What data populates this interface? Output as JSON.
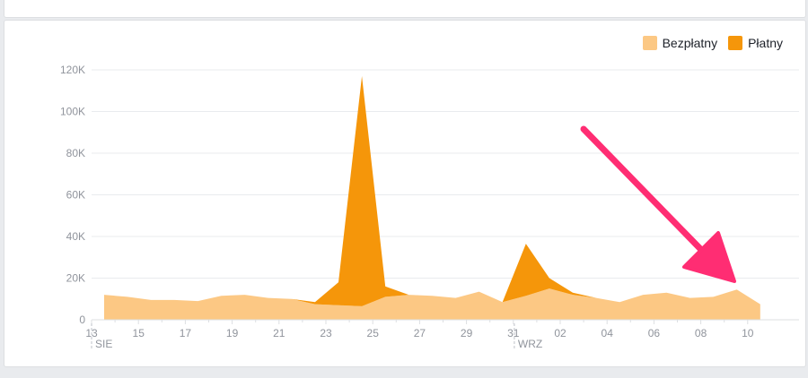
{
  "chart_data": {
    "type": "area",
    "stacked": true,
    "x": [
      "13",
      "14",
      "15",
      "16",
      "17",
      "18",
      "19",
      "20",
      "21",
      "22",
      "23",
      "24",
      "25",
      "26",
      "27",
      "28",
      "29",
      "30",
      "31",
      "01",
      "02",
      "03",
      "04",
      "05",
      "06",
      "07",
      "08",
      "09",
      "10"
    ],
    "x_ticks": [
      "13",
      "15",
      "17",
      "19",
      "21",
      "23",
      "25",
      "27",
      "29",
      "31",
      "02",
      "04",
      "06",
      "08",
      "10"
    ],
    "month_labels": [
      {
        "at": "13",
        "label": "SIE"
      },
      {
        "at": "01",
        "label": "WRZ"
      }
    ],
    "y_ticks": [
      "0",
      "20K",
      "40K",
      "60K",
      "80K",
      "100K",
      "120K"
    ],
    "ylim": [
      0,
      120000
    ],
    "grid": true,
    "legend": "top-right",
    "series": [
      {
        "name": "Bezpłatny",
        "color": "#fcc884",
        "values": [
          12000,
          11000,
          9500,
          9500,
          9000,
          11500,
          12000,
          10500,
          10000,
          7500,
          7000,
          6500,
          11000,
          12000,
          11500,
          10500,
          13500,
          8500,
          11500,
          15000,
          12000,
          10500,
          8500,
          12000,
          13000,
          10500,
          11000,
          14500,
          7500
        ]
      },
      {
        "name": "Płatny",
        "color": "#f5960a",
        "values": [
          0,
          0,
          0,
          0,
          0,
          0,
          0,
          0,
          0,
          1000,
          11000,
          110500,
          5000,
          0,
          0,
          0,
          0,
          0,
          25000,
          5000,
          1000,
          0,
          0,
          0,
          0,
          0,
          0,
          0,
          0
        ]
      }
    ]
  },
  "annotation": {
    "type": "arrow",
    "color": "#ff2d73"
  }
}
